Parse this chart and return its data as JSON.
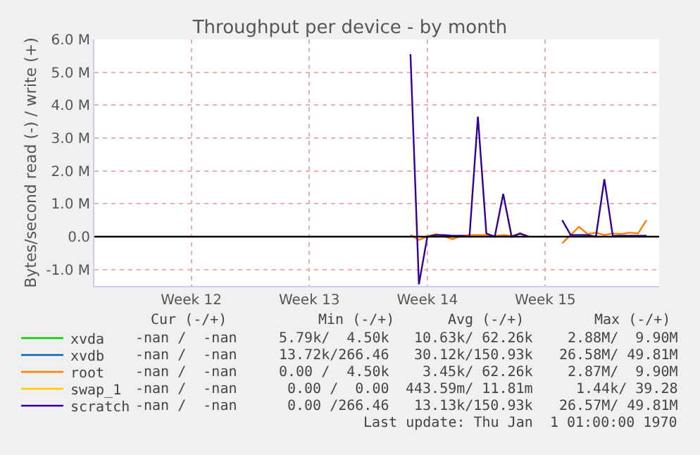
{
  "chart_data": {
    "type": "line",
    "title": "Throughput per device - by month",
    "ylabel": "Bytes/second read (-) / write (+)",
    "categories": [
      null,
      null,
      null,
      null,
      null,
      null,
      null,
      null,
      null,
      null,
      null,
      "Week 12",
      null,
      null,
      null,
      null,
      null,
      null,
      null,
      null,
      null,
      null,
      null,
      null,
      null,
      "Week 13",
      null,
      null,
      null,
      null,
      null,
      null,
      null,
      null,
      null,
      null,
      null,
      null,
      null,
      "Week 14",
      null,
      null,
      null,
      null,
      null,
      null,
      null,
      null,
      null,
      null,
      null,
      null,
      null,
      "Week 15",
      null,
      null,
      null,
      null,
      null,
      null,
      null,
      null,
      null,
      null,
      null,
      null,
      null
    ],
    "ylim": [
      -1500000,
      6000000
    ],
    "yticks": [
      {
        "value": -1000000,
        "label": "-1.0 M"
      },
      {
        "value": 0,
        "label": "0.0"
      },
      {
        "value": 1000000,
        "label": "1.0 M"
      },
      {
        "value": 2000000,
        "label": "2.0 M"
      },
      {
        "value": 3000000,
        "label": "3.0 M"
      },
      {
        "value": 4000000,
        "label": "4.0 M"
      },
      {
        "value": 5000000,
        "label": "5.0 M"
      },
      {
        "value": 6000000,
        "label": "6.0 M"
      }
    ],
    "grid": true,
    "legend": "bottom left",
    "line_style": "solid",
    "ref_lines": [
      {
        "axis": "y",
        "value": 0,
        "color": "#000000"
      }
    ],
    "series": [
      {
        "name": "xvda",
        "color": "#00cc00",
        "values": [
          null,
          null,
          null,
          null,
          null,
          null,
          null,
          null,
          null,
          null,
          null,
          null,
          null,
          null,
          null,
          null,
          null,
          null,
          null,
          null,
          null,
          null,
          null,
          null,
          null,
          null,
          null,
          null,
          null,
          null,
          null,
          null,
          null,
          null,
          null,
          null,
          null,
          null,
          null,
          null,
          null,
          null,
          null,
          null,
          null,
          null,
          null,
          null,
          null,
          null,
          null,
          null,
          null,
          null,
          null,
          null,
          null,
          null,
          null,
          null,
          null,
          null,
          null,
          null,
          null,
          null,
          null
        ]
      },
      {
        "name": "xvdb",
        "color": "#0066b3",
        "values": [
          null,
          null,
          null,
          null,
          null,
          null,
          null,
          null,
          null,
          null,
          null,
          null,
          null,
          null,
          null,
          null,
          null,
          null,
          null,
          null,
          null,
          null,
          null,
          null,
          null,
          null,
          null,
          null,
          null,
          null,
          null,
          null,
          null,
          null,
          null,
          null,
          null,
          null,
          null,
          null,
          null,
          null,
          null,
          null,
          null,
          null,
          null,
          null,
          null,
          null,
          null,
          null,
          null,
          null,
          null,
          null,
          null,
          null,
          null,
          null,
          null,
          null,
          null,
          null,
          null,
          null,
          null
        ]
      },
      {
        "name": "root",
        "color": "#ff8000",
        "values": [
          null,
          null,
          null,
          null,
          null,
          null,
          null,
          null,
          null,
          null,
          null,
          null,
          null,
          null,
          null,
          null,
          null,
          null,
          null,
          null,
          null,
          null,
          null,
          null,
          null,
          null,
          null,
          null,
          null,
          null,
          null,
          null,
          null,
          null,
          null,
          null,
          null,
          50000,
          -100000,
          0,
          80000,
          20000,
          -80000,
          30000,
          50000,
          50000,
          50000,
          20000,
          50000,
          20000,
          80000,
          20000,
          null,
          null,
          null,
          -200000,
          50000,
          300000,
          80000,
          120000,
          50000,
          100000,
          80000,
          120000,
          100000,
          500000,
          null
        ]
      },
      {
        "name": "swap_1",
        "color": "#ffcc00",
        "values": [
          null,
          null,
          null,
          null,
          null,
          null,
          null,
          null,
          null,
          null,
          null,
          null,
          null,
          null,
          null,
          null,
          null,
          null,
          null,
          null,
          null,
          null,
          null,
          null,
          null,
          null,
          null,
          null,
          null,
          null,
          null,
          null,
          null,
          null,
          null,
          null,
          null,
          null,
          null,
          null,
          null,
          null,
          null,
          null,
          null,
          null,
          null,
          null,
          null,
          null,
          null,
          null,
          null,
          null,
          null,
          null,
          null,
          null,
          null,
          null,
          null,
          null,
          null,
          null,
          null,
          null,
          null
        ]
      },
      {
        "name": "scratch",
        "color": "#330099",
        "values": [
          null,
          null,
          null,
          null,
          null,
          null,
          null,
          null,
          null,
          null,
          null,
          null,
          null,
          null,
          null,
          null,
          null,
          null,
          null,
          null,
          null,
          null,
          null,
          null,
          null,
          null,
          null,
          null,
          null,
          null,
          null,
          null,
          null,
          null,
          null,
          null,
          null,
          5550000,
          -1450000,
          0,
          50000,
          50000,
          30000,
          30000,
          0,
          3650000,
          100000,
          0,
          1300000,
          0,
          100000,
          0,
          null,
          null,
          null,
          500000,
          50000,
          50000,
          50000,
          0,
          1750000,
          20000,
          30000,
          30000,
          30000,
          30000,
          null
        ]
      }
    ],
    "annotations": [
      "Cur (-/+)",
      "Min (-/+)",
      "Avg (-/+)",
      "Max (-/+)",
      "-nan /  -nan",
      "5.79k/  4.50k",
      "10.63k/ 62.26k",
      "2.88M/  9.90M",
      "-nan /  -nan",
      "13.72k/266.46",
      "30.12k/150.93k",
      "26.58M/ 49.81M",
      "-nan /  -nan",
      "0.00 /  4.50k",
      "3.45k/ 62.26k",
      "2.87M/  9.90M",
      "-nan /  -nan",
      "0.00 /  0.00",
      "443.59m/ 11.81m",
      "1.44k/ 39.28",
      "-nan /  -nan",
      "0.00 /266.46",
      "13.13k/150.93k",
      "26.57M/ 49.81M",
      "Last update: Thu Jan  1 01:00:00 1970"
    ]
  }
}
